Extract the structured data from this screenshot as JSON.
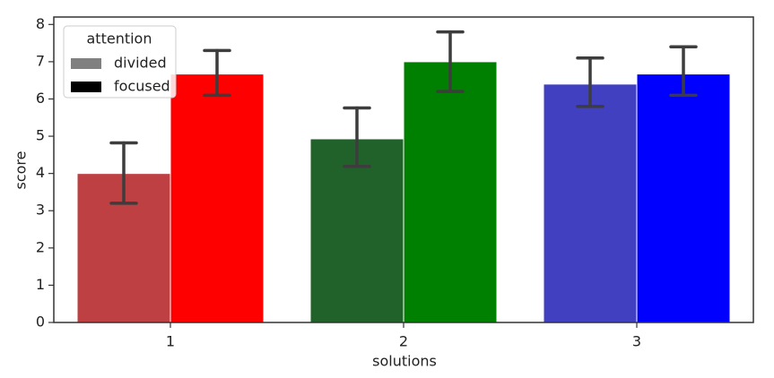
{
  "chart_data": {
    "type": "bar",
    "x_label": "solutions",
    "y_label": "score",
    "categories": [
      "1",
      "2",
      "3"
    ],
    "legend_title": "attention",
    "legend_position": "upper left",
    "series": [
      {
        "name": "divided",
        "color": "#808080",
        "colors": [
          "#bf4042",
          "#21612a",
          "#4040c0"
        ],
        "values": [
          4.0,
          4.93,
          6.4
        ],
        "ci_low": [
          3.2,
          4.19,
          5.8
        ],
        "ci_high": [
          4.82,
          5.76,
          7.1
        ]
      },
      {
        "name": "focused",
        "color": "#000000",
        "colors": [
          "#ff0000",
          "#008000",
          "#0000ff"
        ],
        "values": [
          6.67,
          7.0,
          6.67
        ],
        "ci_low": [
          6.1,
          6.2,
          6.1
        ],
        "ci_high": [
          7.3,
          7.8,
          7.4
        ]
      }
    ],
    "errorbar_color": "#3d3d3d",
    "ylim": [
      0,
      8.2
    ],
    "yticks": [
      0,
      1,
      2,
      3,
      4,
      5,
      6,
      7,
      8
    ],
    "grid": false
  }
}
